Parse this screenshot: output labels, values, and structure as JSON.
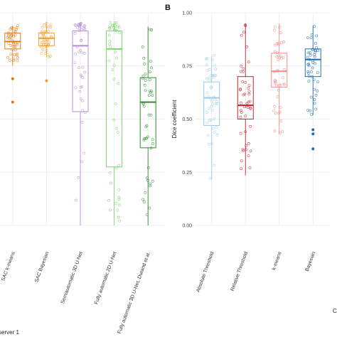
{
  "chart_data": [
    {
      "type": "box",
      "panel_label": "",
      "ylabel": "",
      "ylim": [
        0,
        1
      ],
      "grid": true,
      "footer_text": "server 1",
      "categories": [
        "SAC k-means",
        "SAC Bayesian",
        "Semiautomatic 3D U-Net",
        "Fully automatic 2D U-Net",
        "Fully automatic 3D U-Net, Durand et al."
      ],
      "colors": [
        "#e07b12",
        "#f0a030",
        "#b38ed0",
        "#7fd070",
        "#2e8b2e"
      ],
      "boxes": [
        {
          "q1": 0.83,
          "median": 0.865,
          "q3": 0.905,
          "whisker_low": 0.75,
          "whisker_high": 0.94,
          "outliers": [
            0.58,
            0.69
          ]
        },
        {
          "q1": 0.845,
          "median": 0.88,
          "q3": 0.905,
          "whisker_low": 0.79,
          "whisker_high": 0.955,
          "outliers": [
            0.68
          ]
        },
        {
          "q1": 0.535,
          "median": 0.845,
          "q3": 0.915,
          "whisker_low": 0.0,
          "whisker_high": 0.955,
          "outliers": []
        },
        {
          "q1": 0.275,
          "median": 0.83,
          "q3": 0.915,
          "whisker_low": 0.0,
          "whisker_high": 0.955,
          "outliers": []
        },
        {
          "q1": 0.365,
          "median": 0.58,
          "q3": 0.695,
          "whisker_low": 0.0,
          "whisker_high": 0.935,
          "outliers": []
        }
      ]
    },
    {
      "type": "box",
      "panel_label": "B",
      "ylabel": "Dice coefficient",
      "ylim": [
        0,
        1
      ],
      "yticks": [
        "0.00",
        "0.25",
        "0.50",
        "0.75",
        "1.00"
      ],
      "grid": true,
      "categories": [
        "Absolute Threshold",
        "Relative Threshold",
        "k-means",
        "Bayesian"
      ],
      "colors": [
        "#9ccbe6",
        "#c8202a",
        "#f08a8a",
        "#1f6fb0"
      ],
      "boxes": [
        {
          "q1": 0.47,
          "median": 0.6,
          "q3": 0.675,
          "whisker_low": 0.215,
          "whisker_high": 0.8,
          "outliers": []
        },
        {
          "q1": 0.5,
          "median": 0.565,
          "q3": 0.7,
          "whisker_low": 0.235,
          "whisker_high": 0.95,
          "outliers": []
        },
        {
          "q1": 0.65,
          "median": 0.725,
          "q3": 0.81,
          "whisker_low": 0.43,
          "whisker_high": 0.95,
          "outliers": []
        },
        {
          "q1": 0.7,
          "median": 0.78,
          "q3": 0.83,
          "whisker_low": 0.52,
          "whisker_high": 0.94,
          "outliers": [
            0.43,
            0.45,
            0.36
          ]
        }
      ]
    }
  ],
  "panel_c_label": "C"
}
